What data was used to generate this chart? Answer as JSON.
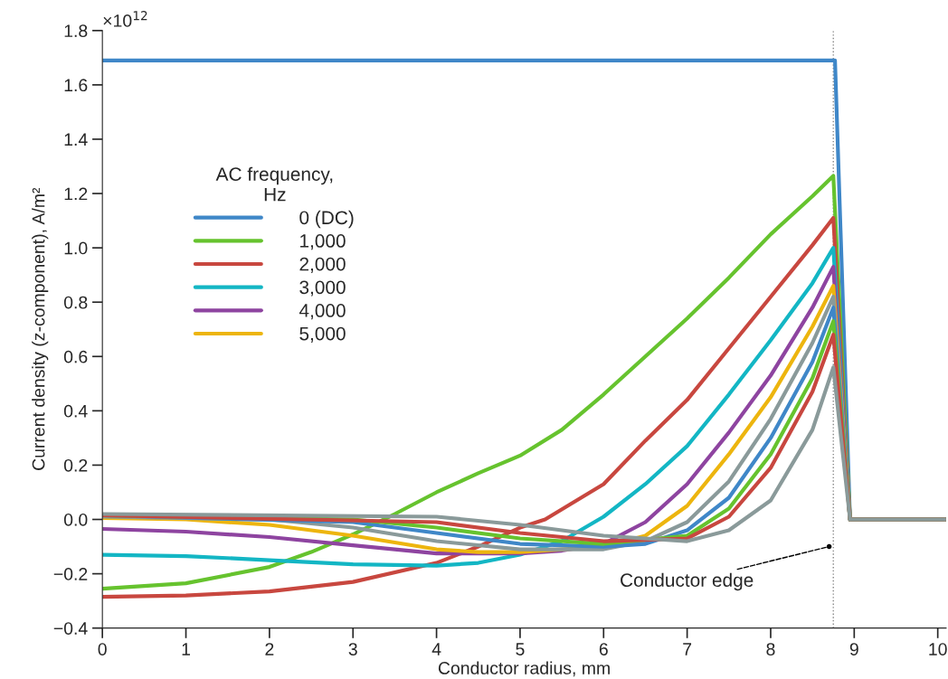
{
  "chart_data": {
    "type": "line",
    "xlabel": "Conductor radius, mm",
    "ylabel": "Current density (z-component), A/m²",
    "legend_title": "AC frequency,\nHz",
    "legend": "top left",
    "xlim": [
      0,
      10.1
    ],
    "xticks": [
      0,
      1,
      2,
      3,
      4,
      5,
      6,
      7,
      8,
      9,
      10
    ],
    "ylim": [
      -0.4,
      1.8
    ],
    "yticks": [
      {
        "value": -0.4,
        "label": "−0.4"
      },
      {
        "value": -0.2,
        "label": "−0.2"
      },
      {
        "value": 0,
        "label": "0.0"
      },
      {
        "value": 0.2,
        "label": "0.2"
      },
      {
        "value": 0.4,
        "label": "0.4"
      },
      {
        "value": 0.6,
        "label": "0.6"
      },
      {
        "value": 0.8,
        "label": "0.8"
      },
      {
        "value": 1.0,
        "label": "1.0"
      },
      {
        "value": 1.2,
        "label": "1.2"
      },
      {
        "value": 1.4,
        "label": "1.4"
      },
      {
        "value": 1.6,
        "label": "1.6"
      },
      1.8
    ],
    "grid": false,
    "marker": "none",
    "line_style": "solid",
    "ref_lines": [
      {
        "axis": "x",
        "value": 8.75,
        "color": "#888888",
        "line_style": "dotted"
      }
    ],
    "annotations": [
      {
        "text": "Conductor edge",
        "x": 8.7,
        "y": -0.1
      },
      "×10$^{12}$"
    ],
    "series": [
      {
        "name": "0 (DC)",
        "color": "#3f87c8",
        "x": [
          0,
          8.77,
          8.95,
          10.1
        ],
        "values": [
          1.69,
          1.69,
          0,
          0
        ]
      },
      {
        "name": "1,000",
        "color": "#66c32e",
        "x": [
          0,
          1,
          2,
          2.5,
          3,
          3.5,
          4,
          4.5,
          5,
          5.5,
          6,
          6.5,
          7,
          7.5,
          8,
          8.5,
          8.75,
          8.95,
          10.1
        ],
        "values": [
          -0.255,
          -0.235,
          -0.175,
          -0.12,
          -0.055,
          0.02,
          0.1,
          0.17,
          0.235,
          0.33,
          0.46,
          0.6,
          0.74,
          0.89,
          1.05,
          1.19,
          1.265,
          0,
          0
        ]
      },
      {
        "name": "2,000",
        "color": "#c8473f",
        "x": [
          0,
          1,
          2,
          3,
          4,
          4.5,
          5,
          5.3,
          6,
          6.5,
          7,
          7.5,
          8,
          8.5,
          8.75,
          8.95,
          10.1
        ],
        "values": [
          -0.285,
          -0.28,
          -0.265,
          -0.23,
          -0.16,
          -0.1,
          -0.03,
          0,
          0.13,
          0.29,
          0.44,
          0.63,
          0.82,
          1.01,
          1.11,
          0,
          0
        ]
      },
      {
        "name": "3,000",
        "color": "#13b6c4",
        "x": [
          0,
          1,
          2,
          3,
          4,
          4.5,
          5,
          5.5,
          6,
          6.5,
          7,
          7.5,
          8,
          8.5,
          8.75,
          8.95,
          10.1
        ],
        "values": [
          -0.13,
          -0.135,
          -0.15,
          -0.165,
          -0.17,
          -0.16,
          -0.13,
          -0.08,
          0.01,
          0.13,
          0.27,
          0.46,
          0.66,
          0.87,
          1.0,
          0,
          0
        ]
      },
      {
        "name": "4,000",
        "color": "#8e44a0",
        "x": [
          0,
          1,
          2,
          3,
          4,
          5,
          5.5,
          6,
          6.5,
          7,
          7.5,
          8,
          8.5,
          8.75,
          8.95,
          10.1
        ],
        "values": [
          -0.035,
          -0.045,
          -0.065,
          -0.095,
          -0.125,
          -0.125,
          -0.115,
          -0.09,
          -0.01,
          0.13,
          0.32,
          0.53,
          0.78,
          0.93,
          0,
          0
        ]
      },
      {
        "name": "5,000",
        "color": "#edb50e",
        "x": [
          0,
          1,
          2,
          3,
          4,
          4.5,
          5,
          6,
          6.5,
          7,
          7.5,
          8,
          8.5,
          8.75,
          8.95,
          10.1
        ],
        "values": [
          0.005,
          0.0,
          -0.02,
          -0.06,
          -0.11,
          -0.12,
          -0.12,
          -0.1,
          -0.06,
          0.05,
          0.24,
          0.45,
          0.71,
          0.86,
          0,
          0
        ]
      },
      {
        "color": "#8a9a9a",
        "x": [
          0,
          2,
          3,
          4,
          5,
          6,
          6.5,
          7,
          7.5,
          8,
          8.5,
          8.75,
          8.95,
          10.1
        ],
        "values": [
          0.01,
          0.0,
          -0.03,
          -0.08,
          -0.11,
          -0.11,
          -0.08,
          -0.01,
          0.14,
          0.37,
          0.65,
          0.82,
          0,
          0
        ]
      },
      {
        "color": "#3f87c8",
        "x": [
          0,
          3,
          4,
          5,
          6,
          6.5,
          7,
          7.5,
          8,
          8.5,
          8.75,
          8.95,
          10.1
        ],
        "values": [
          0.015,
          -0.01,
          -0.05,
          -0.09,
          -0.1,
          -0.09,
          -0.04,
          0.08,
          0.3,
          0.58,
          0.78,
          0,
          0
        ]
      },
      {
        "color": "#66c32e",
        "x": [
          0,
          3,
          4,
          5,
          6,
          7,
          7.5,
          8,
          8.5,
          8.75,
          8.95,
          10.1
        ],
        "values": [
          0.015,
          0.0,
          -0.03,
          -0.07,
          -0.09,
          -0.06,
          0.04,
          0.24,
          0.52,
          0.73,
          0,
          0
        ]
      },
      {
        "color": "#c8473f",
        "x": [
          0,
          4,
          5,
          6,
          7,
          7.5,
          8,
          8.5,
          8.75,
          8.95,
          10.1
        ],
        "values": [
          0.015,
          -0.01,
          -0.05,
          -0.08,
          -0.07,
          0.01,
          0.19,
          0.47,
          0.68,
          0,
          0
        ]
      },
      {
        "color": "#8a9a9a",
        "x": [
          0,
          4,
          5,
          6,
          7,
          7.5,
          8,
          8.5,
          8.75,
          8.95,
          10.1
        ],
        "values": [
          0.02,
          0.01,
          -0.02,
          -0.06,
          -0.08,
          -0.04,
          0.07,
          0.33,
          0.56,
          0,
          0
        ]
      }
    ]
  }
}
